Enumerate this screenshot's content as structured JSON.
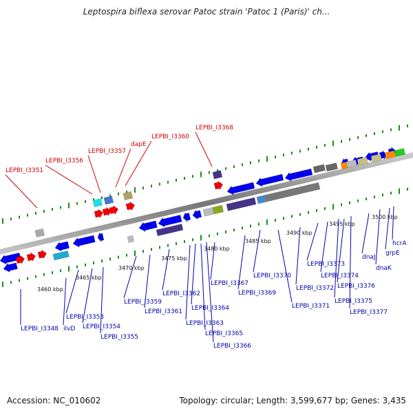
{
  "title": "Leptospira biflexa serovar Patoc strain 'Patoc 1 (Paris)' ch...",
  "footer": {
    "accession": "Accession: NC_010602",
    "summary": "Topology: circular; Length: 3,599,677 bp; Genes: 3,435"
  },
  "colors": {
    "forward_gene": "#0000ee",
    "reverse_gene": "#ee0000",
    "top_label": "#cc0000",
    "bottom_label": "#0000aa",
    "tick": "#1a8a1a"
  },
  "scale_labels": [
    "3460 kbp",
    "3465 kbp",
    "3470 kbp",
    "3475 kbp",
    "3480 kbp",
    "3485 kbp",
    "3490 kbp",
    "3495 kbp",
    "3500 kbp"
  ],
  "top_labels": [
    "LEPBI_I3351",
    "LEPBI_I3356",
    "LEPBI_I3357",
    "dapE",
    "LEPBI_I3360",
    "LEPBI_I3368"
  ],
  "bottom_labels": [
    "LEPBI_I3348",
    "ilvD",
    "LEPBI_I3353",
    "LEPBI_I3354",
    "LEPBI_I3355",
    "LEPBI_I3359",
    "LEPBI_I3361",
    "LEPBI_I3362",
    "LEPBI_I3363",
    "LEPBI_I3364",
    "LEPBI_I3365",
    "LEPBI_I3366",
    "LEPBI_I3367",
    "LEPBI_I3369",
    "LEPBI_I3370",
    "LEPBI_I3371",
    "LEPBI_I3372",
    "LEPBI_I3373",
    "LEPBI_I3374",
    "LEPBI_I3375",
    "LEPBI_I3376",
    "LEPBI_I3377",
    "dnaJ",
    "dnaK",
    "grpE",
    "hcrA"
  ]
}
